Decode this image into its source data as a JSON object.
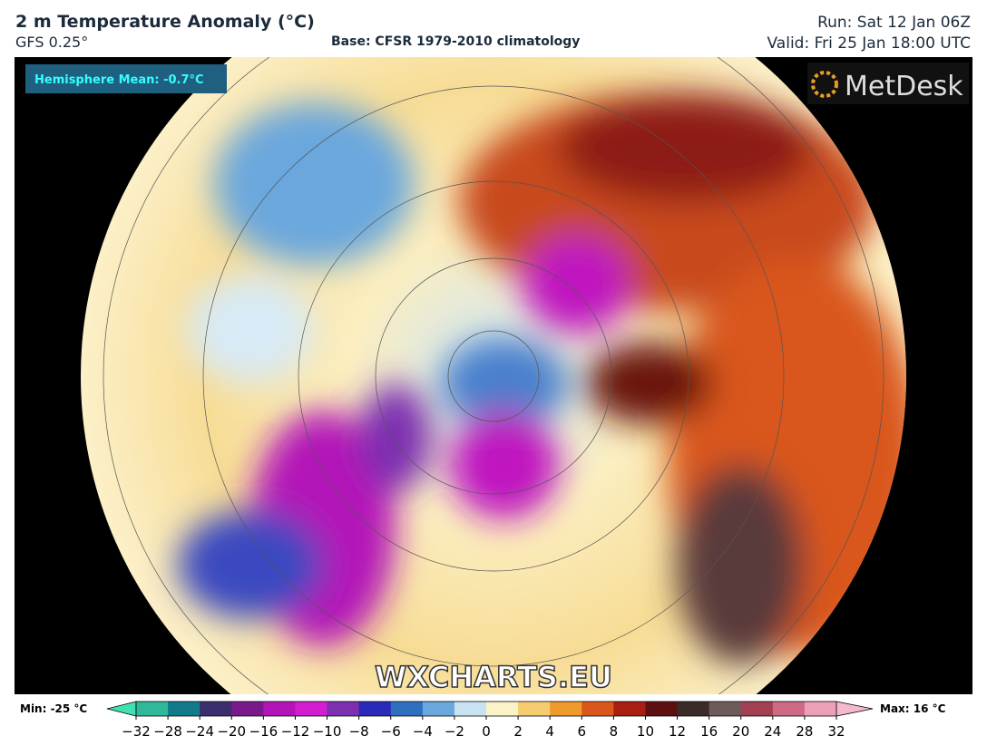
{
  "header": {
    "title": "2 m Temperature Anomaly (°C)",
    "model": "GFS 0.25°",
    "base": "Base: CFSR 1979-2010 climatology",
    "run": "Run: Sat 12 Jan 06Z",
    "valid": "Valid: Fri 25 Jan 18:00 UTC"
  },
  "map": {
    "hemisphere_mean": "Hemisphere Mean: -0.7°C",
    "logo": "MetDesk",
    "watermark": "WXCHARTS.EU"
  },
  "colorbar": {
    "min_label": "Min: -25 °C",
    "max_label": "Max: 16 °C",
    "ticks": [
      {
        "value": -32,
        "label": "−32"
      },
      {
        "value": -28,
        "label": "−28"
      },
      {
        "value": -24,
        "label": "−24"
      },
      {
        "value": -20,
        "label": "−20"
      },
      {
        "value": -16,
        "label": "−16"
      },
      {
        "value": -12,
        "label": "−12"
      },
      {
        "value": -10,
        "label": "−10"
      },
      {
        "value": -8,
        "label": "−8"
      },
      {
        "value": -6,
        "label": "−6"
      },
      {
        "value": -4,
        "label": "−4"
      },
      {
        "value": -2,
        "label": "−2"
      },
      0,
      2,
      4,
      6,
      8,
      10,
      12,
      16,
      20,
      24,
      28,
      32
    ],
    "colors": [
      "#2fb99a",
      "#137a8a",
      "#3b2f6e",
      "#7a1a8a",
      "#b314b8",
      "#d21dd0",
      "#7c2fb0",
      "#2a2ab8",
      "#2f6fc0",
      "#6aa7dd",
      "#c9e2f2",
      "#fbf3c8",
      "#f5cc70",
      "#ef9a2c",
      "#d9571a",
      "#a81e12",
      "#5c1010",
      "#3a2a2a",
      "#6e5a5a",
      "#a04050",
      "#cf6a86",
      "#eba0b8"
    ],
    "extend_colors": [
      "#40e0b0",
      "#f5b8cc"
    ]
  }
}
